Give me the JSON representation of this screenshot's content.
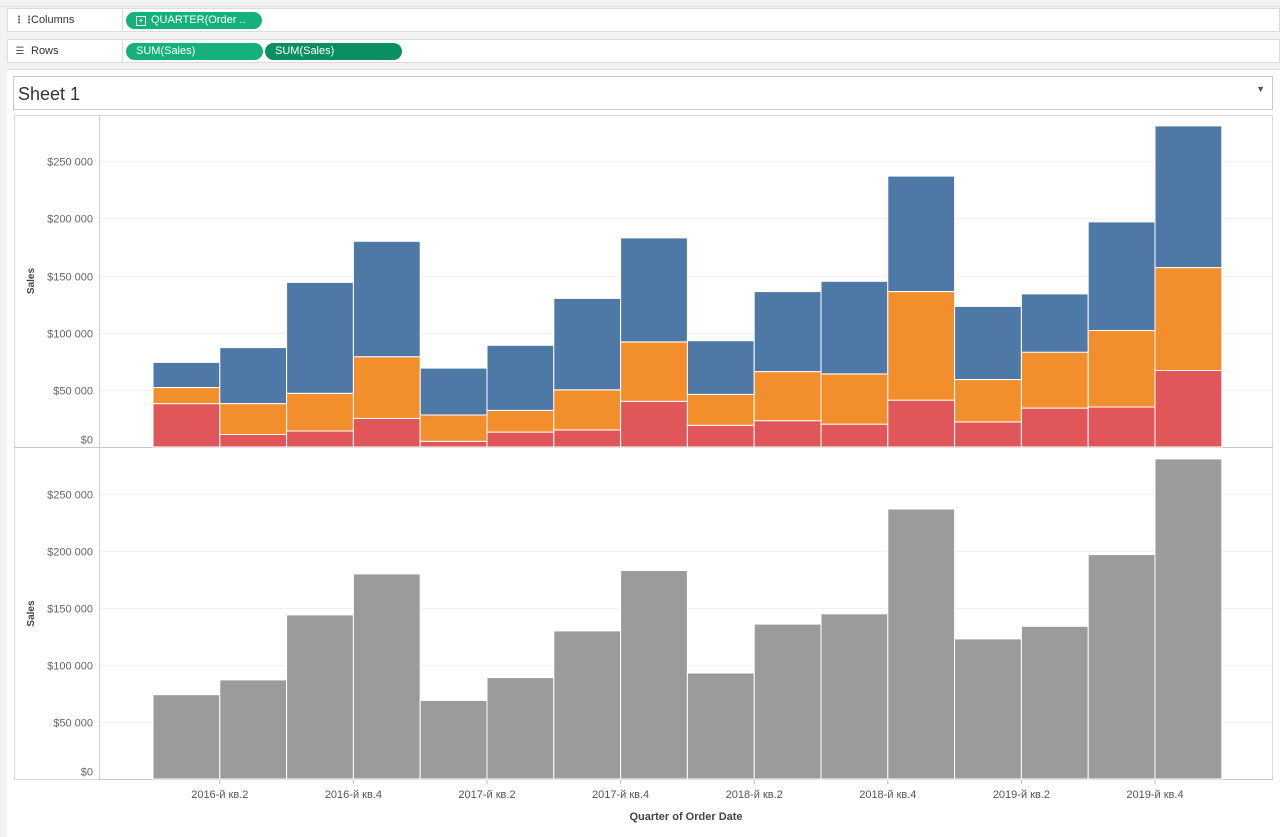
{
  "shelves": {
    "columns": {
      "label": "Columns",
      "icon": "columns-icon",
      "pill": "QUARTER(Order ..",
      "pill_icon": "plus-box-icon"
    },
    "rows": {
      "label": "Rows",
      "icon": "rows-icon",
      "pills": [
        "SUM(Sales)",
        "SUM(Sales)"
      ]
    }
  },
  "sheet": {
    "title": "Sheet 1",
    "menu_icon": "dropdown-arrow-icon"
  },
  "colors": {
    "blue": "#4e79a7",
    "orange": "#f28e2b",
    "red": "#e15759",
    "gray": "#9b9b9b",
    "pill_light": "#16b07b",
    "pill_dark": "#0b8f60"
  },
  "chart_data": [
    {
      "type": "bar",
      "stacked": true,
      "xlabel": "",
      "ylabel": "Sales",
      "ylim": [
        0,
        280000
      ],
      "yticks": [
        0,
        50000,
        100000,
        150000,
        200000,
        250000
      ],
      "ytick_labels": [
        "$0",
        "$50 000",
        "$100 000",
        "$150 000",
        "$200 000",
        "$250 000"
      ],
      "grid": true,
      "categories": [
        "2016-Q1",
        "2016-Q2",
        "2016-Q3",
        "2016-Q4",
        "2017-Q1",
        "2017-Q2",
        "2017-Q3",
        "2017-Q4",
        "2018-Q1",
        "2018-Q2",
        "2018-Q3",
        "2018-Q4",
        "2019-Q1",
        "2019-Q2",
        "2019-Q3",
        "2019-Q4"
      ],
      "series": [
        {
          "color": "#e15759",
          "values": [
            38000,
            11000,
            14000,
            25000,
            5000,
            13000,
            15000,
            40000,
            19000,
            23000,
            20000,
            41000,
            22000,
            34000,
            35000,
            67000
          ]
        },
        {
          "color": "#f28e2b",
          "values": [
            14000,
            27000,
            33000,
            54000,
            23000,
            19000,
            35000,
            52000,
            27000,
            43000,
            44000,
            95000,
            37000,
            49000,
            67000,
            90000
          ]
        },
        {
          "color": "#4e79a7",
          "values": [
            22000,
            49000,
            97000,
            101000,
            41000,
            57000,
            80000,
            91000,
            47000,
            70000,
            81000,
            101000,
            64000,
            51000,
            95000,
            124000
          ]
        }
      ]
    },
    {
      "type": "bar",
      "xlabel": "Quarter of Order Date",
      "ylabel": "Sales",
      "ylim": [
        0,
        280000
      ],
      "yticks": [
        0,
        50000,
        100000,
        150000,
        200000,
        250000
      ],
      "ytick_labels": [
        "$0",
        "$50 000",
        "$100 000",
        "$150 000",
        "$200 000",
        "$250 000"
      ],
      "grid": true,
      "categories": [
        "2016-Q1",
        "2016-Q2",
        "2016-Q3",
        "2016-Q4",
        "2017-Q1",
        "2017-Q2",
        "2017-Q3",
        "2017-Q4",
        "2018-Q1",
        "2018-Q2",
        "2018-Q3",
        "2018-Q4",
        "2019-Q1",
        "2019-Q2",
        "2019-Q3",
        "2019-Q4"
      ],
      "xtick_labels": [
        "2016-й кв.2",
        "2016-й кв.4",
        "2017-й кв.2",
        "2017-й кв.4",
        "2018-й кв.2",
        "2018-й кв.4",
        "2019-й кв.2",
        "2019-й кв.4"
      ],
      "series": [
        {
          "color": "#9b9b9b",
          "values": [
            74000,
            87000,
            144000,
            180000,
            69000,
            89000,
            130000,
            183000,
            93000,
            136000,
            145000,
            237000,
            123000,
            134000,
            197000,
            281000
          ]
        }
      ]
    }
  ]
}
